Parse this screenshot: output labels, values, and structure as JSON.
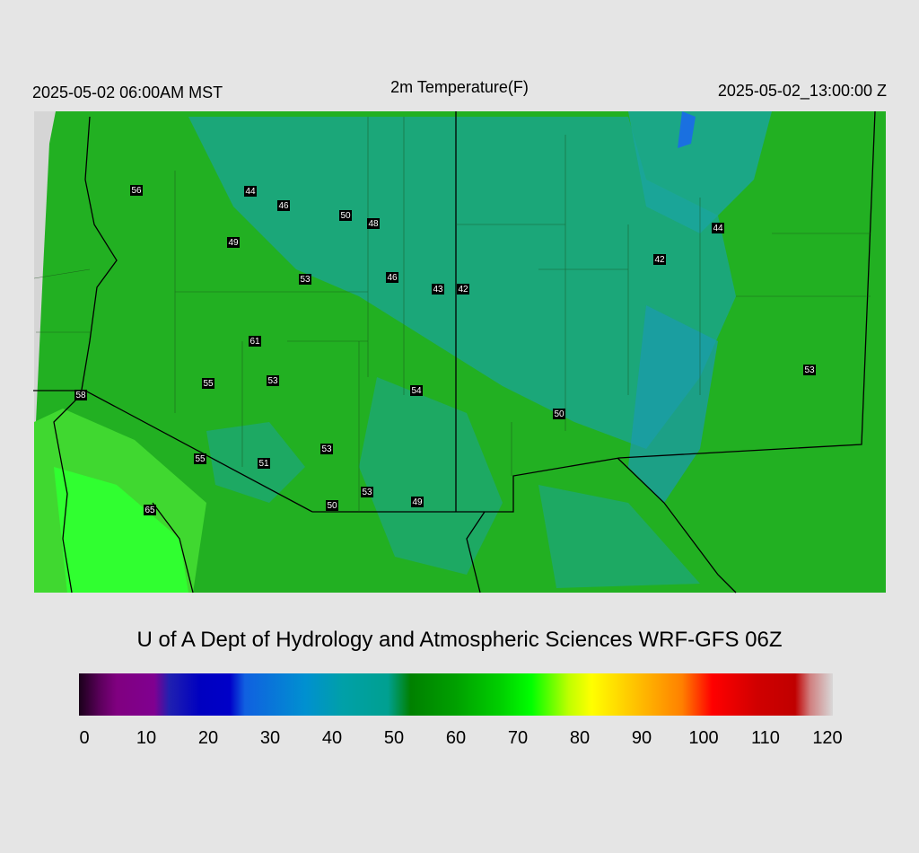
{
  "header": {
    "valid_local": "2025-05-02 06:00AM MST",
    "title": "2m Temperature(F)",
    "valid_utc": "2025-05-02_13:00:00 Z"
  },
  "stations": [
    56,
    44,
    46,
    50,
    48,
    49,
    53,
    46,
    43,
    42,
    44,
    42,
    61,
    55,
    53,
    54,
    58,
    50,
    53,
    53,
    55,
    51,
    53,
    49,
    50,
    65
  ],
  "credit": "U of A Dept of Hydrology and Atmospheric Sciences WRF-GFS 06Z",
  "colorbar": {
    "lim": [
      0,
      120
    ],
    "ticks": [
      0,
      10,
      20,
      30,
      40,
      50,
      60,
      70,
      80,
      90,
      100,
      110,
      120
    ]
  }
}
